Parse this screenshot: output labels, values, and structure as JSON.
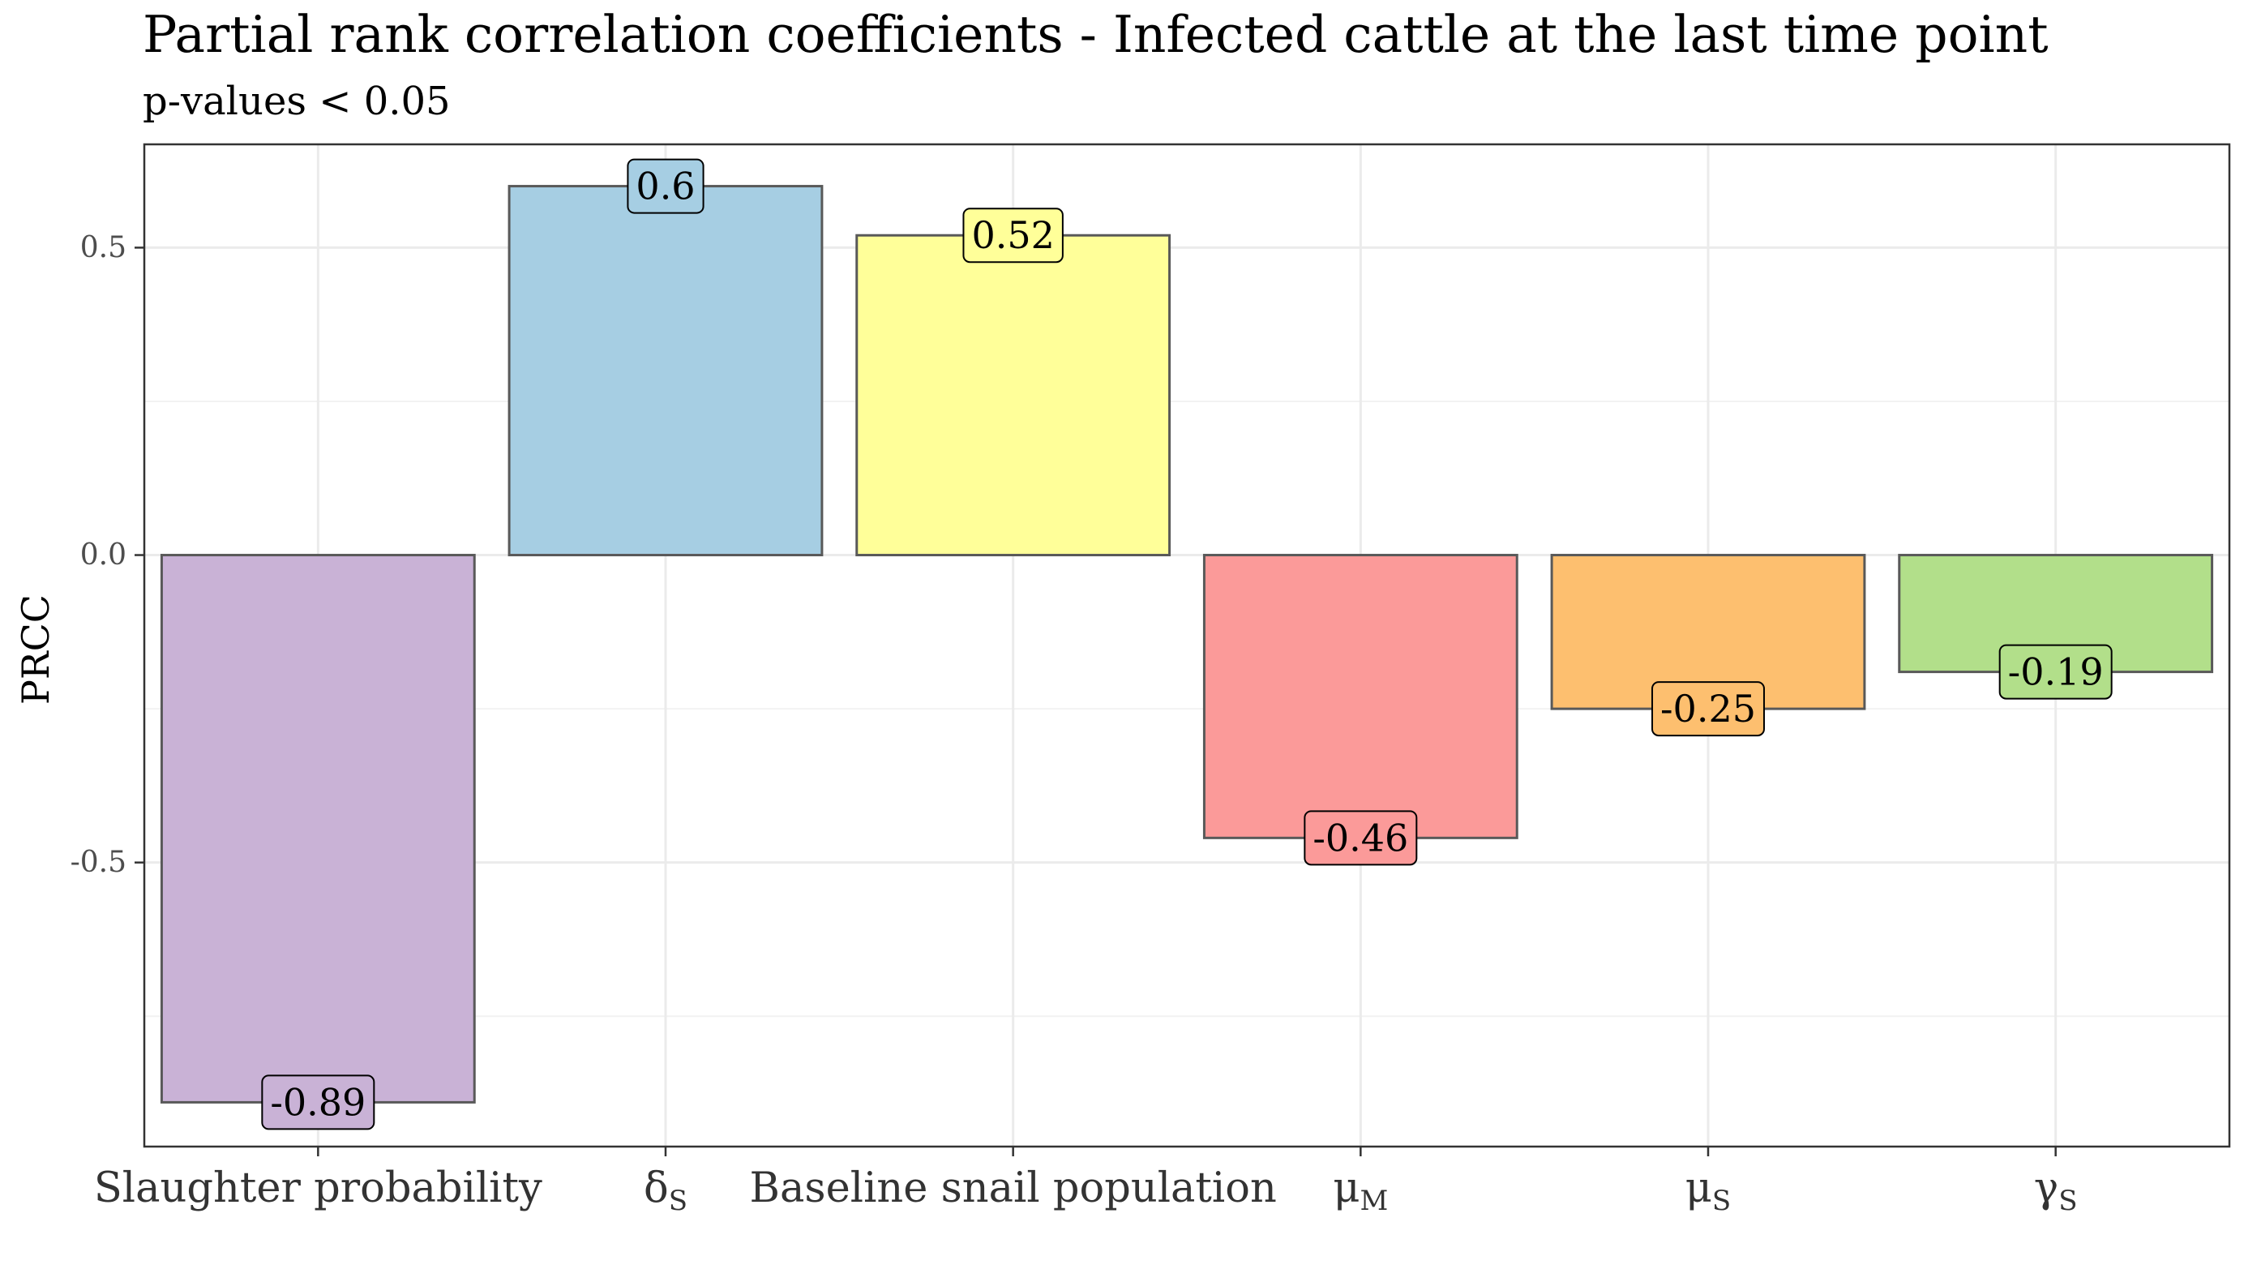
{
  "chart_data": {
    "type": "bar",
    "title": "Partial rank correlation coefficients - Infected cattle at the last time point",
    "subtitle": "p-values < 0.05",
    "xlabel": "",
    "ylabel": "PRCC",
    "categories": [
      {
        "text": "Slaughter probability"
      },
      {
        "text": "δ",
        "sub": "S"
      },
      {
        "text": "Baseline snail population"
      },
      {
        "text": "μ",
        "sub": "M"
      },
      {
        "text": "μ",
        "sub": "S"
      },
      {
        "text": "γ",
        "sub": "S"
      }
    ],
    "values": [
      -0.89,
      0.6,
      0.52,
      -0.46,
      -0.25,
      -0.19
    ],
    "data_labels": [
      "-0.89",
      "0.6",
      "0.52",
      "-0.46",
      "-0.25",
      "-0.19"
    ],
    "colors": [
      "#c9b2d6",
      "#a6cee3",
      "#ffff99",
      "#fb9a99",
      "#fdbf6f",
      "#b2df8a"
    ],
    "yticks": [
      -0.5,
      0.0,
      0.5
    ],
    "ytick_labels": [
      "-0.5",
      "0.0",
      "0.5"
    ],
    "ylim": [
      -0.962,
      0.668
    ],
    "grid": true,
    "legend": "none",
    "bar_outline_color": "#595959"
  }
}
